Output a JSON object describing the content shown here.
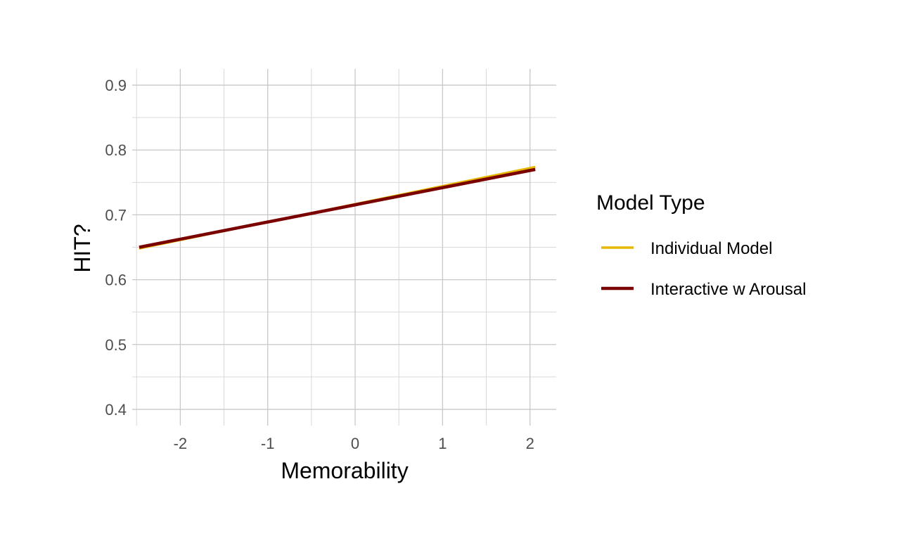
{
  "chart_data": {
    "type": "line",
    "title": "",
    "xlabel": "Memorability",
    "ylabel": "HIT?",
    "xlim": [
      -2.55,
      2.3
    ],
    "ylim": [
      0.375,
      0.925
    ],
    "x_ticks": [
      -2,
      -1,
      0,
      1,
      2
    ],
    "x_tick_labels": [
      "-2",
      "-1",
      "0",
      "1",
      "2"
    ],
    "y_ticks": [
      0.4,
      0.5,
      0.6,
      0.7,
      0.8,
      0.9
    ],
    "y_tick_labels": [
      "0.4",
      "0.5",
      "0.6",
      "0.7",
      "0.8",
      "0.9"
    ],
    "grid": true,
    "legend": {
      "title": "Model Type",
      "placement": "right"
    },
    "series": [
      {
        "name": "Individual Model",
        "color": "#E6B800",
        "x": [
          -2.47,
          2.06
        ],
        "y": [
          0.648,
          0.774
        ]
      },
      {
        "name": "Interactive w Arousal",
        "color": "#7A0000",
        "x": [
          -2.47,
          2.06
        ],
        "y": [
          0.65,
          0.77
        ]
      }
    ]
  }
}
